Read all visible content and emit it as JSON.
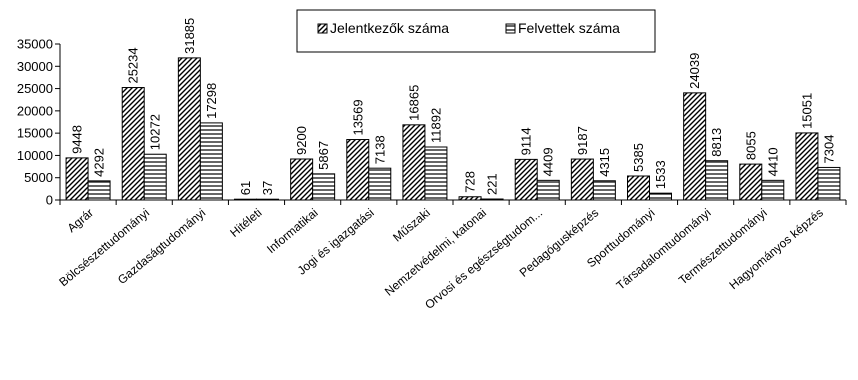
{
  "chart_data": {
    "type": "bar",
    "categories": [
      "Agrár",
      "Bölcsészettudományi",
      "Gazdaságtudományi",
      "Hitéleti",
      "Informatikai",
      "Jogi és igazgatási",
      "Műszaki",
      "Nemzetvédelmi, katonai",
      "Orvosi és egészségtudom...",
      "Pedagógusképzés",
      "Sporttudományi",
      "Társadalomtudományi",
      "Természettudományi",
      "Hagyományos képzés"
    ],
    "series": [
      {
        "name": "Jelentkezők száma",
        "pattern": "diagonal",
        "values": [
          9448,
          25234,
          31885,
          61,
          9200,
          13569,
          16865,
          728,
          9114,
          9187,
          5385,
          24039,
          8055,
          15051
        ],
        "labels": [
          "9448",
          "25234",
          "31885",
          "61",
          "9200",
          "13569",
          "16865",
          "728",
          "9114",
          "9187",
          "5385",
          "24039",
          "8055",
          "15051"
        ]
      },
      {
        "name": "Felvettek száma",
        "pattern": "horizontal",
        "values": [
          4292,
          10272,
          17298,
          37,
          5867,
          7138,
          11892,
          221,
          4409,
          4315,
          1533,
          8813,
          4410,
          7304
        ],
        "labels": [
          "4292",
          "10272",
          "17298",
          "37",
          "5867",
          "7138",
          "11892",
          "221",
          "4409",
          "4315",
          "1533",
          "8813",
          "4410",
          "7304"
        ]
      }
    ],
    "ylim": [
      0,
      35000
    ],
    "yticks": [
      "0",
      "5000",
      "10000",
      "15000",
      "20000",
      "25000",
      "30000",
      "35000"
    ],
    "title": "",
    "xlabel": "",
    "ylabel": "",
    "grid": false,
    "legend_position": "top"
  }
}
